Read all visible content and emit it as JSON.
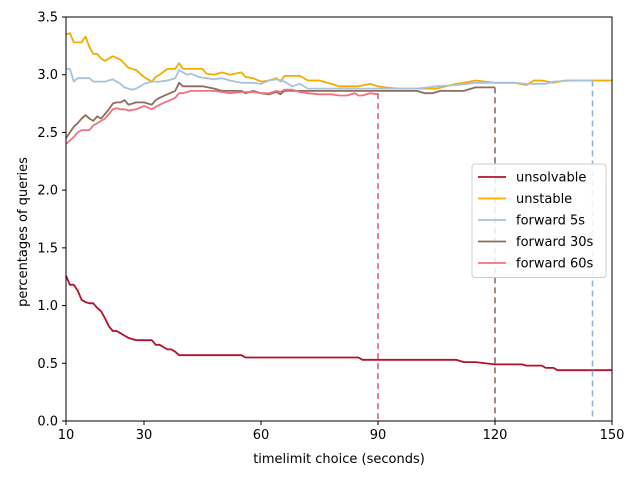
{
  "chart_data": {
    "type": "line",
    "title": "",
    "xlabel": "timelimit choice (seconds)",
    "ylabel": "percentages of queries",
    "xlim": [
      10,
      150
    ],
    "ylim": [
      0,
      3.5
    ],
    "xticks": [
      10,
      30,
      60,
      90,
      120,
      150
    ],
    "yticks": [
      0.0,
      0.5,
      1.0,
      1.5,
      2.0,
      2.5,
      3.0,
      3.5
    ],
    "xtick_labels": [
      "10",
      "30",
      "60",
      "90",
      "120",
      "150"
    ],
    "ytick_labels": [
      "0.0",
      "0.5",
      "1.0",
      "1.5",
      "2.0",
      "2.5",
      "3.0",
      "3.5"
    ],
    "grid": false,
    "legend_position": "center-right",
    "series": [
      {
        "name": "unsolvable",
        "color": "#b5102a",
        "x": [
          10,
          11,
          12,
          13,
          14,
          15,
          16,
          17,
          18,
          19,
          20,
          21,
          22,
          23,
          24,
          25,
          26,
          28,
          30,
          32,
          33,
          34,
          35,
          36,
          37,
          38,
          39,
          40,
          45,
          50,
          55,
          56,
          57,
          60,
          70,
          80,
          85,
          86,
          90,
          100,
          105,
          110,
          112,
          115,
          120,
          125,
          127,
          128,
          130,
          132,
          133,
          135,
          136,
          140,
          145,
          150
        ],
        "y": [
          1.26,
          1.18,
          1.18,
          1.13,
          1.05,
          1.03,
          1.02,
          1.02,
          0.98,
          0.95,
          0.89,
          0.82,
          0.78,
          0.78,
          0.76,
          0.74,
          0.72,
          0.7,
          0.7,
          0.7,
          0.66,
          0.66,
          0.64,
          0.62,
          0.62,
          0.6,
          0.57,
          0.57,
          0.57,
          0.57,
          0.57,
          0.55,
          0.55,
          0.55,
          0.55,
          0.55,
          0.55,
          0.53,
          0.53,
          0.53,
          0.53,
          0.53,
          0.51,
          0.51,
          0.49,
          0.49,
          0.49,
          0.48,
          0.48,
          0.48,
          0.46,
          0.46,
          0.44,
          0.44,
          0.44,
          0.44
        ]
      },
      {
        "name": "unstable",
        "color": "#f5ab00",
        "x": [
          10,
          11,
          12,
          13,
          14,
          15,
          16,
          17,
          18,
          19,
          20,
          22,
          24,
          26,
          28,
          30,
          31,
          32,
          33,
          34,
          36,
          38,
          39,
          40,
          42,
          45,
          46,
          48,
          50,
          52,
          55,
          56,
          58,
          60,
          62,
          64,
          65,
          66,
          68,
          70,
          72,
          75,
          78,
          80,
          85,
          88,
          90,
          92,
          95,
          100,
          105,
          110,
          112,
          115,
          120,
          125,
          128,
          130,
          132,
          135,
          138,
          140,
          145,
          150
        ],
        "y": [
          3.35,
          3.36,
          3.28,
          3.28,
          3.28,
          3.33,
          3.24,
          3.18,
          3.18,
          3.14,
          3.12,
          3.16,
          3.13,
          3.06,
          3.04,
          2.98,
          2.96,
          2.94,
          2.98,
          3.0,
          3.05,
          3.05,
          3.1,
          3.05,
          3.05,
          3.05,
          3.01,
          3.0,
          3.02,
          3.0,
          3.02,
          2.98,
          2.97,
          2.94,
          2.95,
          2.97,
          2.94,
          2.99,
          2.99,
          2.99,
          2.95,
          2.95,
          2.92,
          2.9,
          2.9,
          2.92,
          2.9,
          2.89,
          2.88,
          2.88,
          2.88,
          2.92,
          2.93,
          2.95,
          2.93,
          2.93,
          2.91,
          2.95,
          2.95,
          2.93,
          2.95,
          2.95,
          2.95,
          2.95
        ]
      },
      {
        "name": "forward 5s",
        "color": "#a6c2dd",
        "x": [
          10,
          11,
          12,
          13,
          14,
          15,
          16,
          17,
          18,
          19,
          20,
          22,
          24,
          25,
          26,
          27,
          28,
          30,
          32,
          34,
          36,
          38,
          39,
          40,
          41,
          42,
          44,
          46,
          48,
          50,
          52,
          55,
          58,
          60,
          62,
          64,
          66,
          68,
          70,
          72,
          75,
          78,
          80,
          85,
          88,
          90,
          95,
          100,
          105,
          110,
          115,
          120,
          125,
          128,
          130,
          133,
          135,
          140,
          145
        ],
        "y": [
          3.05,
          3.05,
          2.94,
          2.97,
          2.97,
          2.97,
          2.97,
          2.94,
          2.94,
          2.94,
          2.94,
          2.96,
          2.92,
          2.89,
          2.88,
          2.87,
          2.88,
          2.92,
          2.94,
          2.94,
          2.95,
          2.97,
          3.04,
          3.02,
          3.0,
          3.01,
          2.98,
          2.97,
          2.96,
          2.97,
          2.95,
          2.93,
          2.93,
          2.92,
          2.95,
          2.96,
          2.94,
          2.9,
          2.92,
          2.88,
          2.88,
          2.88,
          2.88,
          2.88,
          2.88,
          2.88,
          2.88,
          2.88,
          2.9,
          2.91,
          2.93,
          2.93,
          2.93,
          2.92,
          2.92,
          2.92,
          2.94,
          2.95,
          2.95
        ]
      },
      {
        "name": "forward 30s",
        "color": "#8b6e5f",
        "x": [
          10,
          11,
          12,
          13,
          14,
          15,
          16,
          17,
          18,
          19,
          20,
          21,
          22,
          23,
          24,
          25,
          26,
          28,
          30,
          32,
          33,
          34,
          36,
          38,
          39,
          40,
          42,
          45,
          48,
          50,
          55,
          56,
          58,
          60,
          62,
          64,
          65,
          66,
          68,
          70,
          75,
          80,
          85,
          88,
          90,
          95,
          100,
          102,
          104,
          106,
          108,
          110,
          112,
          115,
          120
        ],
        "y": [
          2.45,
          2.5,
          2.55,
          2.58,
          2.62,
          2.65,
          2.62,
          2.6,
          2.64,
          2.62,
          2.66,
          2.7,
          2.75,
          2.76,
          2.76,
          2.78,
          2.74,
          2.76,
          2.76,
          2.74,
          2.78,
          2.8,
          2.83,
          2.86,
          2.93,
          2.9,
          2.9,
          2.9,
          2.88,
          2.86,
          2.86,
          2.84,
          2.86,
          2.84,
          2.83,
          2.85,
          2.83,
          2.86,
          2.86,
          2.86,
          2.86,
          2.86,
          2.86,
          2.86,
          2.86,
          2.86,
          2.86,
          2.84,
          2.84,
          2.86,
          2.86,
          2.86,
          2.86,
          2.89,
          2.89
        ]
      },
      {
        "name": "forward 60s",
        "color": "#f2717f",
        "x": [
          10,
          11,
          12,
          13,
          14,
          15,
          16,
          17,
          18,
          19,
          20,
          21,
          22,
          23,
          24,
          25,
          26,
          28,
          30,
          32,
          33,
          34,
          36,
          38,
          39,
          40,
          42,
          45,
          48,
          50,
          52,
          55,
          58,
          60,
          62,
          64,
          65,
          66,
          68,
          70,
          72,
          75,
          78,
          80,
          82,
          84,
          85,
          86,
          88,
          90
        ],
        "y": [
          2.4,
          2.43,
          2.46,
          2.5,
          2.52,
          2.52,
          2.52,
          2.56,
          2.58,
          2.6,
          2.62,
          2.66,
          2.7,
          2.71,
          2.7,
          2.7,
          2.69,
          2.7,
          2.73,
          2.7,
          2.72,
          2.74,
          2.77,
          2.8,
          2.84,
          2.84,
          2.86,
          2.86,
          2.86,
          2.85,
          2.84,
          2.85,
          2.85,
          2.84,
          2.84,
          2.86,
          2.85,
          2.87,
          2.87,
          2.85,
          2.84,
          2.83,
          2.83,
          2.82,
          2.82,
          2.84,
          2.82,
          2.82,
          2.84,
          2.83
        ]
      }
    ],
    "vlines": [
      {
        "x": 90,
        "y_top": 2.84,
        "color": "#e4607a"
      },
      {
        "x": 120,
        "y_top": 2.89,
        "color": "#8b6e5f"
      },
      {
        "x": 145,
        "y_top": 2.95,
        "color": "#8fb4d9"
      }
    ]
  }
}
